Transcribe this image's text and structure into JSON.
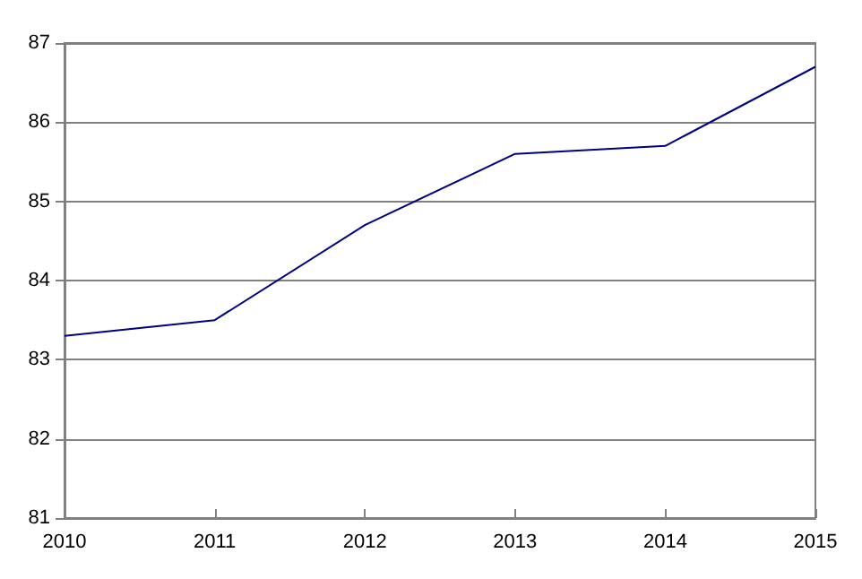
{
  "chart_data": {
    "type": "line",
    "x": [
      2010,
      2011,
      2012,
      2013,
      2014,
      2015
    ],
    "series": [
      {
        "color": "#000080",
        "values": [
          83.3,
          83.5,
          84.7,
          85.6,
          85.7,
          86.7
        ]
      }
    ],
    "xlim": [
      2010,
      2015
    ],
    "xticks": [
      2010,
      2011,
      2012,
      2013,
      2014,
      2015
    ],
    "ylim": [
      81,
      87
    ],
    "yticks": [
      81,
      82,
      83,
      84,
      85,
      86,
      87
    ],
    "grid": "y",
    "marker": "none",
    "line_style": "solid"
  }
}
